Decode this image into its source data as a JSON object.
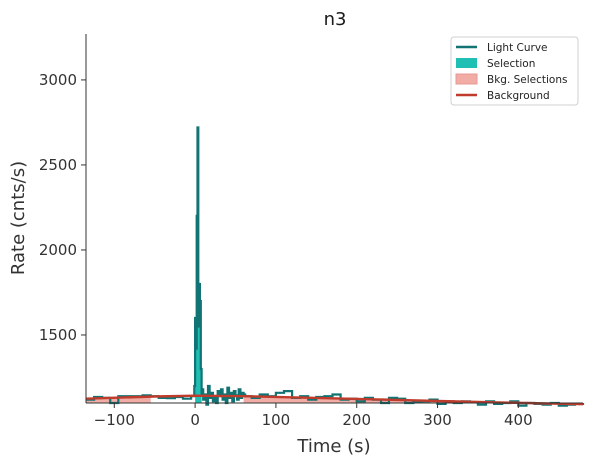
{
  "chart_data": {
    "type": "line",
    "title": "n3",
    "xlabel": "Time (s)",
    "ylabel": "Rate (cnts/s)",
    "xlim": [
      -135,
      480
    ],
    "ylim": [
      1100,
      3270
    ],
    "x_ticks": [
      -100,
      0,
      100,
      200,
      300,
      400
    ],
    "y_ticks": [
      1500,
      2000,
      2500,
      3000
    ],
    "x_tick_labels": [
      "−100",
      "0",
      "100",
      "200",
      "300",
      "400"
    ],
    "y_tick_labels": [
      "1500",
      "2000",
      "2500",
      "3000"
    ],
    "legend": {
      "position": "top-right",
      "entries": [
        {
          "label": "Light Curve",
          "kind": "line",
          "color": "#117373"
        },
        {
          "label": "Selection",
          "kind": "patch",
          "color": "#1fbfb3"
        },
        {
          "label": "Bkg. Selections",
          "kind": "patch",
          "color": "#f2aca6"
        },
        {
          "label": "Background",
          "kind": "line",
          "color": "#bf3b2b"
        }
      ]
    },
    "selection": {
      "x": [
        0,
        8
      ]
    },
    "bkg_selections": [
      {
        "x": [
          -135,
          -55
        ]
      },
      {
        "x": [
          60,
          480
        ]
      }
    ],
    "background": {
      "x": [
        -135,
        -50,
        0,
        60,
        150,
        250,
        350,
        450,
        480
      ],
      "y": [
        1125,
        1138,
        1143,
        1140,
        1130,
        1118,
        1106,
        1096,
        1093
      ]
    },
    "light_curve": {
      "x": [
        -135,
        -125,
        -115,
        -105,
        -95,
        -85,
        -75,
        -65,
        -55,
        -45,
        -35,
        -25,
        -15,
        -5,
        -1,
        0,
        1,
        2,
        3,
        4,
        5,
        6,
        7,
        8,
        9,
        10,
        12,
        14,
        16,
        18,
        20,
        22,
        24,
        26,
        28,
        30,
        32,
        34,
        36,
        38,
        40,
        42,
        44,
        46,
        48,
        50,
        52,
        54,
        56,
        58,
        60,
        62,
        70,
        80,
        90,
        100,
        110,
        120,
        130,
        140,
        150,
        160,
        170,
        180,
        190,
        200,
        210,
        220,
        230,
        240,
        250,
        260,
        270,
        280,
        290,
        300,
        310,
        320,
        330,
        340,
        350,
        360,
        370,
        380,
        390,
        400,
        410,
        420,
        430,
        440,
        450,
        460,
        470,
        480
      ],
      "y": [
        1120,
        1135,
        1130,
        1100,
        1140,
        1140,
        1140,
        1145,
        1140,
        1130,
        1128,
        1135,
        1125,
        1140,
        1200,
        1600,
        1420,
        2200,
        2720,
        1550,
        1800,
        1700,
        1300,
        1150,
        1180,
        1120,
        1150,
        1090,
        1200,
        1130,
        1160,
        1110,
        1140,
        1100,
        1170,
        1140,
        1180,
        1120,
        1150,
        1100,
        1190,
        1130,
        1160,
        1110,
        1170,
        1145,
        1120,
        1180,
        1130,
        1160,
        1150,
        1140,
        1130,
        1150,
        1140,
        1160,
        1170,
        1130,
        1140,
        1120,
        1135,
        1140,
        1150,
        1120,
        1125,
        1110,
        1130,
        1120,
        1100,
        1130,
        1125,
        1100,
        1105,
        1110,
        1120,
        1095,
        1110,
        1100,
        1110,
        1105,
        1090,
        1110,
        1095,
        1100,
        1110,
        1085,
        1100,
        1095,
        1090,
        1100,
        1085,
        1090,
        1095,
        1100
      ]
    }
  }
}
